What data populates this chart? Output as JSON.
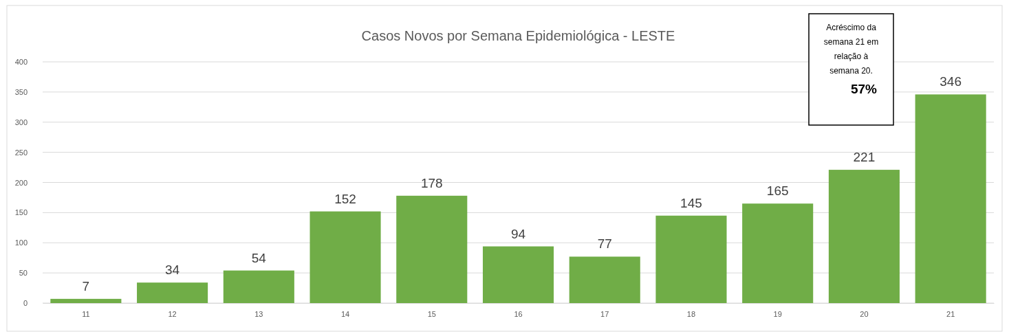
{
  "chart_data": {
    "type": "bar",
    "title": "Casos Novos por Semana Epidemiológica - LESTE",
    "categories": [
      "11",
      "12",
      "13",
      "14",
      "15",
      "16",
      "17",
      "18",
      "19",
      "20",
      "21"
    ],
    "values": [
      7,
      34,
      54,
      152,
      178,
      94,
      77,
      145,
      165,
      221,
      346
    ],
    "color": "#70ad47",
    "ylim": [
      0,
      400
    ],
    "yticks": [
      0,
      50,
      100,
      150,
      200,
      250,
      300,
      350,
      400
    ],
    "grid": "y",
    "data_labels": true,
    "annotations": [
      "Acréscimo da semana 21 em relação à semana 20.",
      "57%"
    ]
  }
}
